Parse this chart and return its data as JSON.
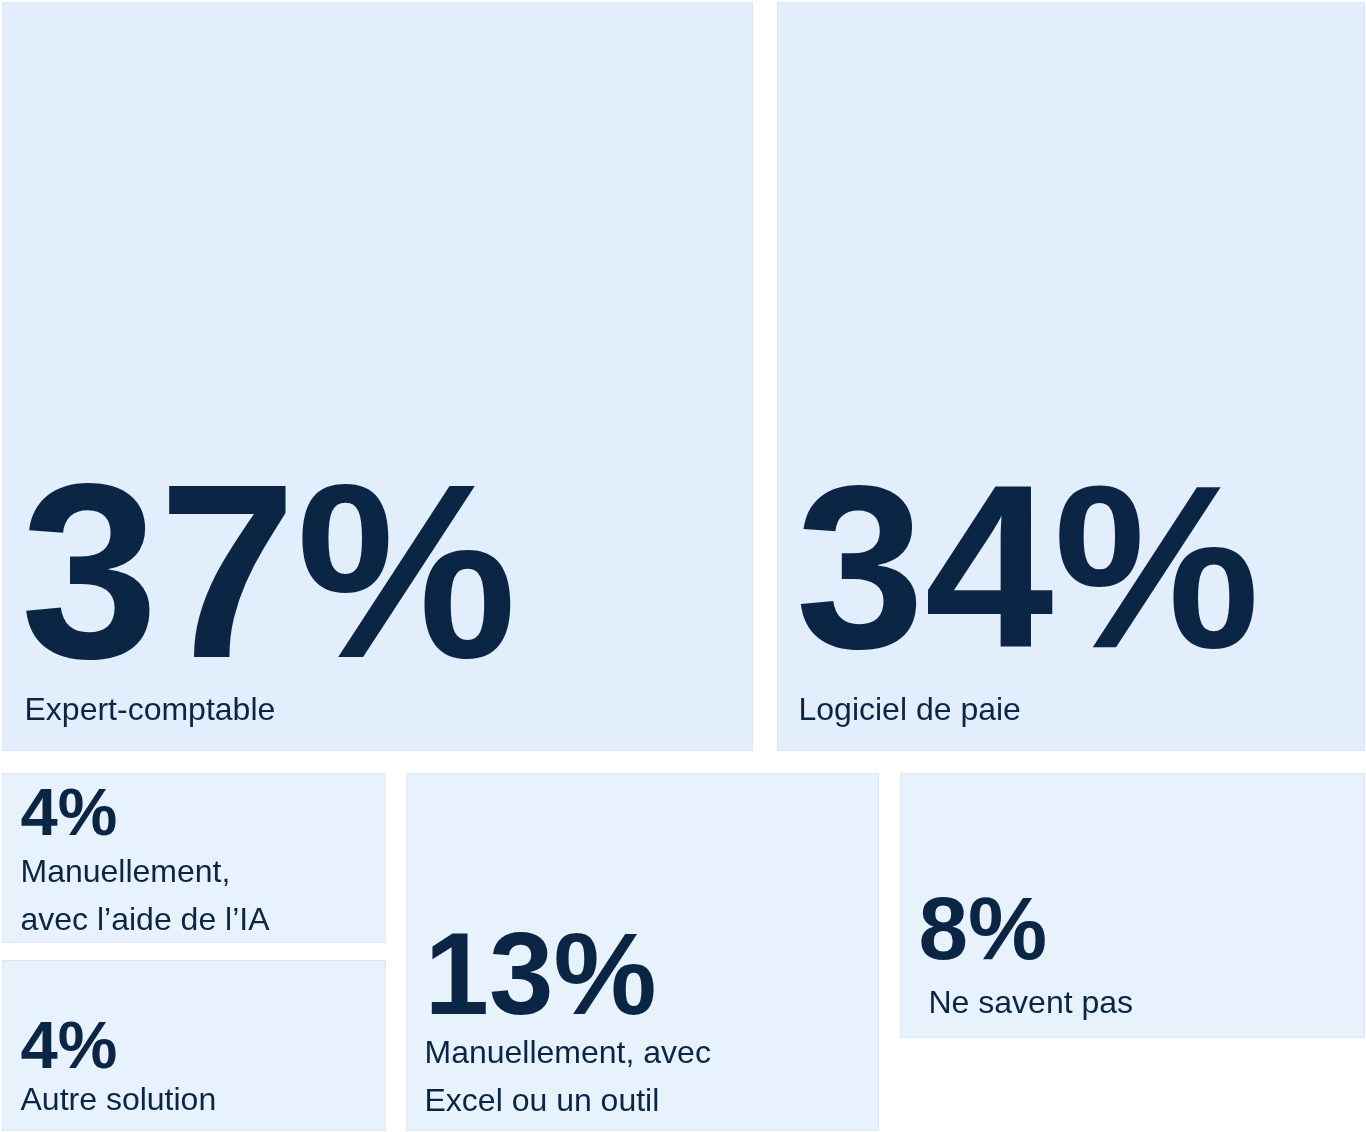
{
  "chart_data": {
    "type": "other",
    "categories": [
      "Expert-comptable",
      "Logiciel de paie",
      "Manuellement, avec l’aide de l’IA",
      "Autre solution",
      "Manuellement, avec Excel ou un outil",
      "Ne savent pas"
    ],
    "values": [
      37,
      34,
      4,
      4,
      13,
      8
    ],
    "value_labels": [
      "37%",
      "34%",
      "4%",
      "4%",
      "13%",
      "8%"
    ],
    "colors": [
      "#e3eefc",
      "#e3eefc",
      "#e8f2fd",
      "#e8f2fd",
      "#e8f2fd",
      "#e8f2fd"
    ]
  }
}
